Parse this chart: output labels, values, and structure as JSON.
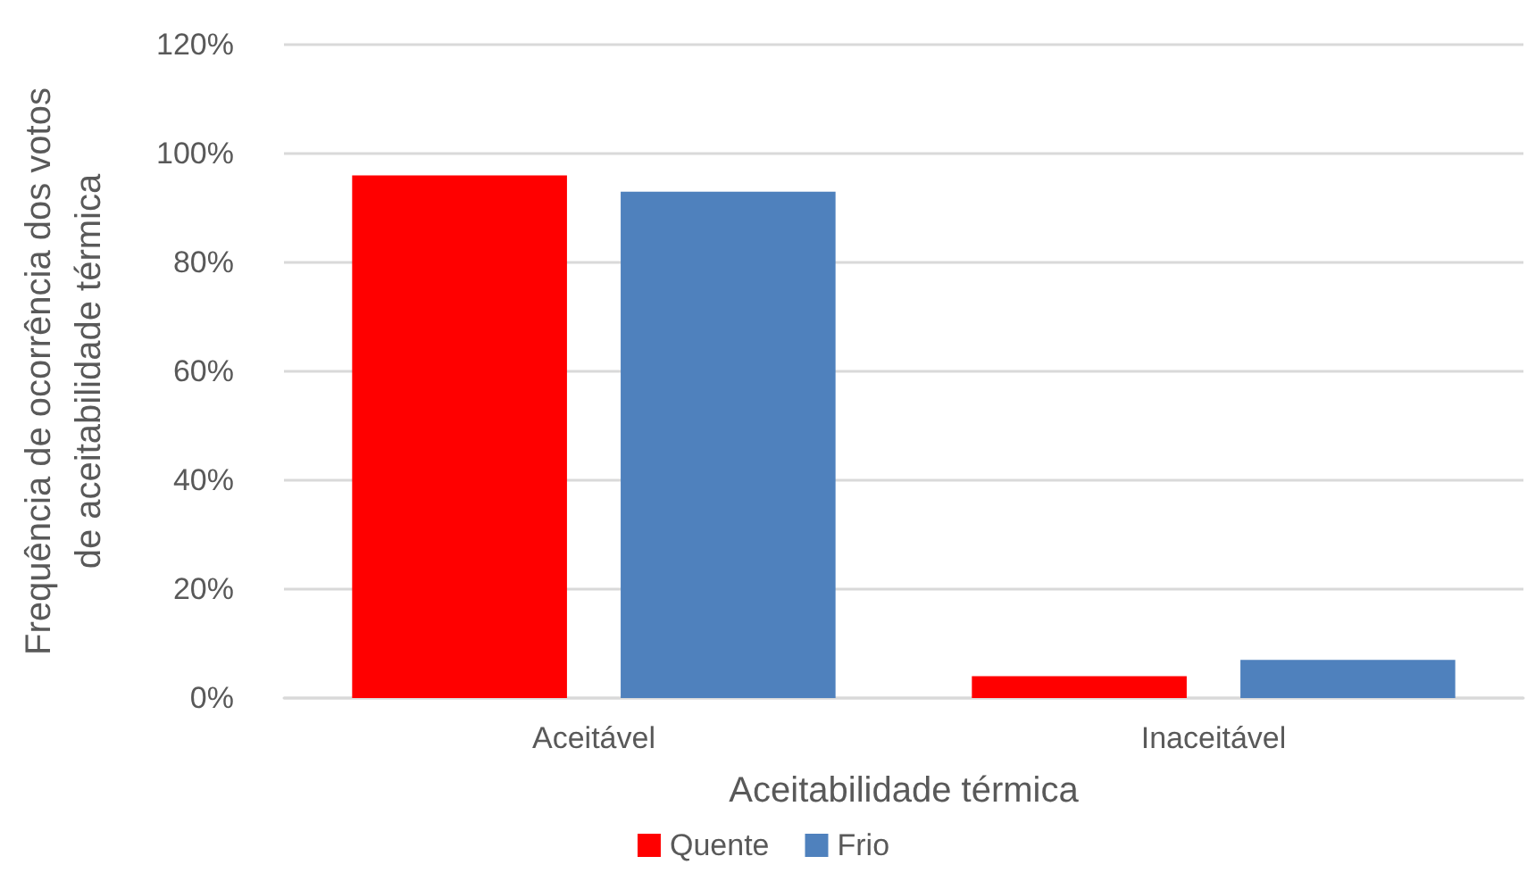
{
  "chart_data": {
    "type": "bar",
    "xlabel": "Aceitabilidade térmica",
    "ylabel": "Frequência de ocorrência dos votos\nde aceitabilidade térmica",
    "categories": [
      "Aceitável",
      "Inaceitável"
    ],
    "series": [
      {
        "name": "Quente",
        "color": "#ff0000",
        "values": [
          96,
          4
        ]
      },
      {
        "name": "Frio",
        "color": "#4f81bd",
        "values": [
          93,
          7
        ]
      }
    ],
    "ylim": [
      0,
      120
    ],
    "yticks": [
      {
        "value": 0,
        "label": "0%"
      },
      {
        "value": 20,
        "label": "20%"
      },
      {
        "value": 40,
        "label": "40%"
      },
      {
        "value": 60,
        "label": "60%"
      },
      {
        "value": 80,
        "label": "80%"
      },
      {
        "value": 100,
        "label": "100%"
      },
      {
        "value": 120,
        "label": "120%"
      }
    ],
    "grid": "y",
    "legend": "bottom"
  }
}
